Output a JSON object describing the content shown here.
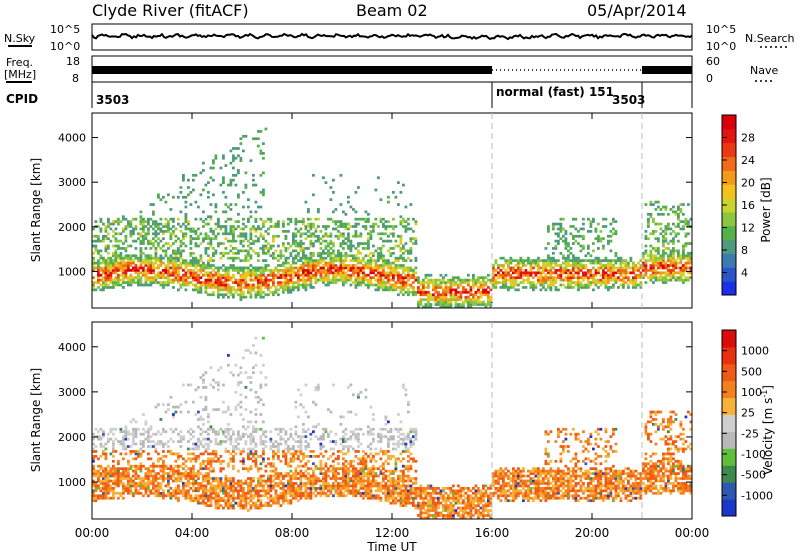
{
  "header": {
    "title": "Clyde River (fitACF)",
    "beam": "Beam 02",
    "date": "05/Apr/2014"
  },
  "noise_panel": {
    "left_label": "N.Sky",
    "right_label": "N.Search",
    "tick_top": "10^5",
    "tick_bottom": "10^0",
    "right_tick_top": "10^5",
    "right_tick_bottom": "10^0"
  },
  "freq_panel": {
    "left_label_1": "Freq.",
    "left_label_2": "[MHz]",
    "left_tick_top": "18",
    "left_tick_bottom": "8",
    "right_label": "Nave",
    "right_tick_top": "60",
    "right_tick_bottom": "0"
  },
  "cpid_panel": {
    "label": "CPID",
    "segments": [
      {
        "text": "3503",
        "start": 0.0
      },
      {
        "text": "normal (fast) 151",
        "start": 16.0
      },
      {
        "text": "3503",
        "start": 22.0
      }
    ]
  },
  "time_axis": {
    "label": "Time UT",
    "ticks": [
      "00:00",
      "04:00",
      "08:00",
      "12:00",
      "16:00",
      "20:00",
      "00:00"
    ],
    "tick_hours": [
      0,
      4,
      8,
      12,
      16,
      20,
      24
    ]
  },
  "chart_data": [
    {
      "type": "heatmap",
      "title": "Power [dB]",
      "ylabel": "Slant Range [km]",
      "xlabel": "Time UT",
      "yticks": [
        "1000",
        "2000",
        "3000",
        "4000"
      ],
      "ytick_values": [
        1000,
        2000,
        3000,
        4000
      ],
      "xlim": [
        0,
        24
      ],
      "ylim": [
        180,
        4550
      ],
      "colorbar": {
        "label": "Power [dB]",
        "ticks": [
          "4",
          "8",
          "12",
          "16",
          "20",
          "24",
          "28"
        ],
        "tick_values": [
          4,
          8,
          12,
          16,
          20,
          24,
          28
        ],
        "range": [
          0,
          32
        ],
        "colors": [
          "#1a2fe6",
          "#2a55c8",
          "#3c7bb0",
          "#4f9a7c",
          "#55b04a",
          "#8cc63f",
          "#c9d431",
          "#f3c21f",
          "#f39a1a",
          "#f06a17",
          "#ea3a12",
          "#e3160f",
          "#d9000c"
        ]
      },
      "mode_change_hours": [
        16.0,
        22.0
      ]
    },
    {
      "type": "heatmap",
      "title": "Velocity [m s-1]",
      "ylabel": "Slant Range [km]",
      "xlabel": "Time UT",
      "yticks": [
        "1000",
        "2000",
        "3000",
        "4000"
      ],
      "ytick_values": [
        1000,
        2000,
        3000,
        4000
      ],
      "xlim": [
        0,
        24
      ],
      "ylim": [
        180,
        4550
      ],
      "colorbar": {
        "label": "Velocity [m s",
        "label_sup": "-1",
        "label_end": "]",
        "ticks": [
          "1000",
          "500",
          "100",
          "25",
          "-25",
          "-100",
          "-500",
          "-1000"
        ],
        "colors": [
          "#1c36c8",
          "#3057b4",
          "#3d8a4c",
          "#5fbf3a",
          "#b9b9b9",
          "#cfcfcf",
          "#f6b23a",
          "#f5811e",
          "#ef5a16",
          "#e8300f",
          "#dc0a0a"
        ]
      },
      "mode_change_hours": [
        16.0,
        22.0
      ]
    }
  ]
}
